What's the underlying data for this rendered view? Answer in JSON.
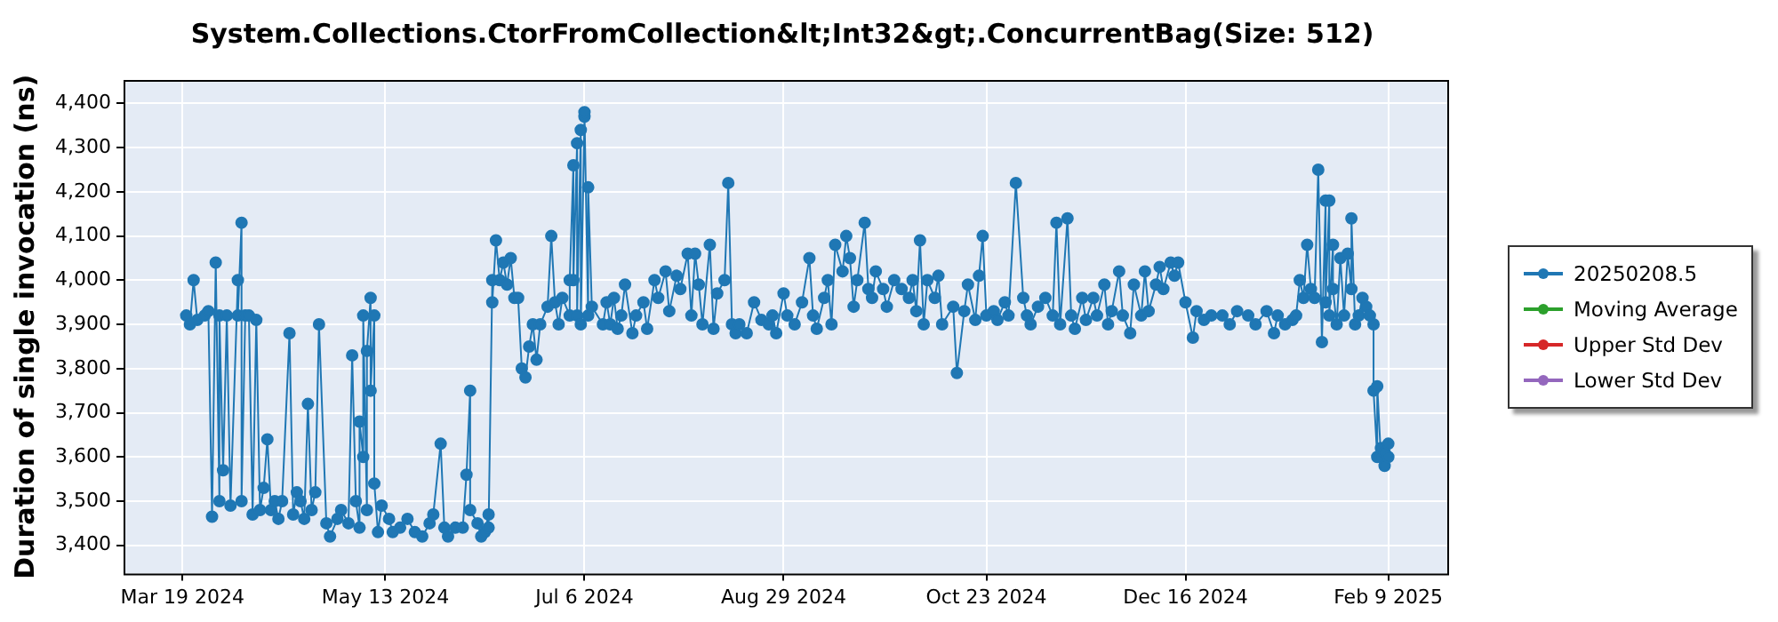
{
  "chart_data": {
    "type": "line",
    "title": "System.Collections.CtorFromCollection&lt;Int32&gt;.ConcurrentBag(Size: 512)",
    "ylabel": "Duration of single invocation (ns)",
    "marker": "circle",
    "grid": true,
    "legend": "right",
    "xlim": [
      "2024-03-03",
      "2025-02-25"
    ],
    "xticks": [
      {
        "value": "2024-03-19",
        "label": "Mar 19 2024"
      },
      {
        "value": "2024-05-13",
        "label": "May 13 2024"
      },
      {
        "value": "2024-07-06",
        "label": "Jul 6 2024"
      },
      {
        "value": "2024-08-29",
        "label": "Aug 29 2024"
      },
      {
        "value": "2024-10-23",
        "label": "Oct 23 2024"
      },
      {
        "value": "2024-12-16",
        "label": "Dec 16 2024"
      },
      {
        "value": "2025-02-09",
        "label": "Feb 9 2025"
      }
    ],
    "ylim": [
      3336,
      4453
    ],
    "yticks": [
      {
        "value": 3400,
        "label": "3,400"
      },
      {
        "value": 3500,
        "label": "3,500"
      },
      {
        "value": 3600,
        "label": "3,600"
      },
      {
        "value": 3700,
        "label": "3,700"
      },
      {
        "value": 3800,
        "label": "3,800"
      },
      {
        "value": 3900,
        "label": "3,900"
      },
      {
        "value": 4000,
        "label": "4,000"
      },
      {
        "value": 4100,
        "label": "4,100"
      },
      {
        "value": 4200,
        "label": "4,200"
      },
      {
        "value": 4300,
        "label": "4,300"
      },
      {
        "value": 4400,
        "label": "4,400"
      }
    ],
    "series": [
      {
        "name": "20250208.5",
        "color": "#1f77b4",
        "x": [
          "2024-03-20",
          "2024-03-21",
          "2024-03-22",
          "2024-03-23",
          "2024-03-25",
          "2024-03-26",
          "2024-03-27",
          "2024-03-28",
          "2024-03-29",
          "2024-03-29",
          "2024-03-30",
          "2024-03-31",
          "2024-04-01",
          "2024-04-03",
          "2024-04-03",
          "2024-04-04",
          "2024-04-04",
          "2024-04-05",
          "2024-04-06",
          "2024-04-07",
          "2024-04-08",
          "2024-04-09",
          "2024-04-10",
          "2024-04-11",
          "2024-04-12",
          "2024-04-13",
          "2024-04-14",
          "2024-04-15",
          "2024-04-17",
          "2024-04-18",
          "2024-04-19",
          "2024-04-20",
          "2024-04-21",
          "2024-04-22",
          "2024-04-23",
          "2024-04-24",
          "2024-04-25",
          "2024-04-27",
          "2024-04-28",
          "2024-04-30",
          "2024-05-01",
          "2024-05-03",
          "2024-05-04",
          "2024-05-05",
          "2024-05-06",
          "2024-05-06",
          "2024-05-07",
          "2024-05-07",
          "2024-05-08",
          "2024-05-08",
          "2024-05-09",
          "2024-05-09",
          "2024-05-10",
          "2024-05-10",
          "2024-05-11",
          "2024-05-12",
          "2024-05-14",
          "2024-05-15",
          "2024-05-17",
          "2024-05-19",
          "2024-05-21",
          "2024-05-23",
          "2024-05-25",
          "2024-05-26",
          "2024-05-28",
          "2024-05-29",
          "2024-05-30",
          "2024-06-01",
          "2024-06-03",
          "2024-06-04",
          "2024-06-05",
          "2024-06-05",
          "2024-06-07",
          "2024-06-08",
          "2024-06-09",
          "2024-06-10",
          "2024-06-10",
          "2024-06-11",
          "2024-06-11",
          "2024-06-12",
          "2024-06-13",
          "2024-06-14",
          "2024-06-15",
          "2024-06-16",
          "2024-06-17",
          "2024-06-18",
          "2024-06-19",
          "2024-06-20",
          "2024-06-21",
          "2024-06-22",
          "2024-06-23",
          "2024-06-24",
          "2024-06-26",
          "2024-06-27",
          "2024-06-28",
          "2024-06-29",
          "2024-06-30",
          "2024-07-02",
          "2024-07-02",
          "2024-07-03",
          "2024-07-03",
          "2024-07-04",
          "2024-07-04",
          "2024-07-05",
          "2024-07-05",
          "2024-07-06",
          "2024-07-06",
          "2024-07-07",
          "2024-07-07",
          "2024-07-08",
          "2024-07-11",
          "2024-07-12",
          "2024-07-13",
          "2024-07-14",
          "2024-07-15",
          "2024-07-16",
          "2024-07-17",
          "2024-07-19",
          "2024-07-20",
          "2024-07-22",
          "2024-07-23",
          "2024-07-25",
          "2024-07-26",
          "2024-07-28",
          "2024-07-29",
          "2024-07-31",
          "2024-08-01",
          "2024-08-03",
          "2024-08-04",
          "2024-08-05",
          "2024-08-06",
          "2024-08-07",
          "2024-08-09",
          "2024-08-10",
          "2024-08-11",
          "2024-08-13",
          "2024-08-14",
          "2024-08-15",
          "2024-08-16",
          "2024-08-17",
          "2024-08-19",
          "2024-08-21",
          "2024-08-23",
          "2024-08-25",
          "2024-08-26",
          "2024-08-27",
          "2024-08-29",
          "2024-08-30",
          "2024-09-01",
          "2024-09-03",
          "2024-09-05",
          "2024-09-06",
          "2024-09-07",
          "2024-09-09",
          "2024-09-10",
          "2024-09-11",
          "2024-09-12",
          "2024-09-14",
          "2024-09-15",
          "2024-09-16",
          "2024-09-17",
          "2024-09-18",
          "2024-09-20",
          "2024-09-21",
          "2024-09-22",
          "2024-09-23",
          "2024-09-25",
          "2024-09-26",
          "2024-09-28",
          "2024-09-30",
          "2024-10-02",
          "2024-10-03",
          "2024-10-04",
          "2024-10-05",
          "2024-10-06",
          "2024-10-07",
          "2024-10-09",
          "2024-10-10",
          "2024-10-11",
          "2024-10-14",
          "2024-10-15",
          "2024-10-17",
          "2024-10-18",
          "2024-10-20",
          "2024-10-21",
          "2024-10-22",
          "2024-10-23",
          "2024-10-25",
          "2024-10-26",
          "2024-10-28",
          "2024-10-29",
          "2024-10-31",
          "2024-11-02",
          "2024-11-03",
          "2024-11-04",
          "2024-11-06",
          "2024-11-08",
          "2024-11-10",
          "2024-11-11",
          "2024-11-12",
          "2024-11-14",
          "2024-11-15",
          "2024-11-16",
          "2024-11-18",
          "2024-11-19",
          "2024-11-21",
          "2024-11-22",
          "2024-11-24",
          "2024-11-25",
          "2024-11-26",
          "2024-11-28",
          "2024-11-29",
          "2024-12-01",
          "2024-12-02",
          "2024-12-04",
          "2024-12-05",
          "2024-12-06",
          "2024-12-08",
          "2024-12-09",
          "2024-12-10",
          "2024-12-12",
          "2024-12-13",
          "2024-12-14",
          "2024-12-16",
          "2024-12-18",
          "2024-12-19",
          "2024-12-21",
          "2024-12-23",
          "2024-12-26",
          "2024-12-28",
          "2024-12-30",
          "2025-01-02",
          "2025-01-04",
          "2025-01-07",
          "2025-01-09",
          "2025-01-10",
          "2025-01-12",
          "2025-01-14",
          "2025-01-15",
          "2025-01-16",
          "2025-01-17",
          "2025-01-18",
          "2025-01-19",
          "2025-01-20",
          "2025-01-21",
          "2025-01-22",
          "2025-01-23",
          "2025-01-23",
          "2025-01-24",
          "2025-01-24",
          "2025-01-25",
          "2025-01-25",
          "2025-01-26",
          "2025-01-27",
          "2025-01-28",
          "2025-01-29",
          "2025-01-30",
          "2025-01-30",
          "2025-01-31",
          "2025-02-01",
          "2025-02-02",
          "2025-02-03",
          "2025-02-04",
          "2025-02-05",
          "2025-02-05",
          "2025-02-06",
          "2025-02-06",
          "2025-02-07",
          "2025-02-07",
          "2025-02-08",
          "2025-02-08",
          "2025-02-09",
          "2025-02-09"
        ],
        "values": [
          3920,
          3900,
          4000,
          3910,
          3920,
          3930,
          3465,
          4040,
          3500,
          3920,
          3570,
          3920,
          3490,
          4000,
          3920,
          4130,
          3500,
          3920,
          3920,
          3470,
          3910,
          3480,
          3530,
          3640,
          3480,
          3500,
          3460,
          3500,
          3880,
          3470,
          3520,
          3500,
          3460,
          3720,
          3480,
          3520,
          3900,
          3450,
          3420,
          3460,
          3480,
          3450,
          3830,
          3500,
          3440,
          3680,
          3600,
          3920,
          3480,
          3840,
          3960,
          3750,
          3920,
          3540,
          3430,
          3490,
          3460,
          3430,
          3440,
          3460,
          3430,
          3420,
          3450,
          3470,
          3630,
          3440,
          3420,
          3440,
          3440,
          3560,
          3750,
          3480,
          3450,
          3420,
          3430,
          3470,
          3440,
          4000,
          3950,
          4090,
          4000,
          4040,
          3990,
          4050,
          3960,
          3960,
          3800,
          3780,
          3850,
          3900,
          3820,
          3900,
          3940,
          4100,
          3950,
          3900,
          3960,
          3920,
          4000,
          4260,
          4000,
          4310,
          3920,
          4340,
          3900,
          4370,
          4380,
          3920,
          4210,
          3940,
          3900,
          3950,
          3900,
          3960,
          3890,
          3920,
          3990,
          3880,
          3920,
          3950,
          3890,
          4000,
          3960,
          4020,
          3930,
          4010,
          3980,
          4060,
          3920,
          4060,
          3990,
          3900,
          4080,
          3890,
          3970,
          4000,
          4220,
          3900,
          3880,
          3900,
          3880,
          3950,
          3910,
          3900,
          3920,
          3880,
          3970,
          3920,
          3900,
          3950,
          4050,
          3920,
          3890,
          3960,
          4000,
          3900,
          4080,
          4020,
          4100,
          4050,
          3940,
          4000,
          4130,
          3980,
          3960,
          4020,
          3980,
          3940,
          4000,
          3980,
          3960,
          4000,
          3930,
          4090,
          3900,
          4000,
          3960,
          4010,
          3900,
          3940,
          3790,
          3930,
          3990,
          3910,
          4010,
          4100,
          3920,
          3930,
          3910,
          3950,
          3920,
          4220,
          3960,
          3920,
          3900,
          3940,
          3960,
          3920,
          4130,
          3900,
          4140,
          3920,
          3890,
          3960,
          3910,
          3960,
          3920,
          3990,
          3900,
          3930,
          4020,
          3920,
          3880,
          3990,
          3920,
          4020,
          3930,
          3990,
          4030,
          3980,
          4040,
          4010,
          4040,
          3950,
          3870,
          3930,
          3910,
          3920,
          3920,
          3900,
          3930,
          3920,
          3900,
          3930,
          3880,
          3920,
          3900,
          3910,
          3920,
          4000,
          3960,
          4080,
          3980,
          3960,
          4250,
          3860,
          4180,
          3950,
          4180,
          3920,
          4080,
          3980,
          3900,
          4050,
          3920,
          4060,
          3980,
          4140,
          3900,
          3920,
          3960,
          3940,
          3920,
          3900,
          3750,
          3600,
          3760,
          3600,
          3620,
          3580,
          3610,
          3630,
          3600
        ]
      },
      {
        "name": "Moving Average",
        "color": "#2ca02c"
      },
      {
        "name": "Upper Std Dev",
        "color": "#d62728"
      },
      {
        "name": "Lower Std Dev",
        "color": "#9467bd"
      }
    ]
  }
}
